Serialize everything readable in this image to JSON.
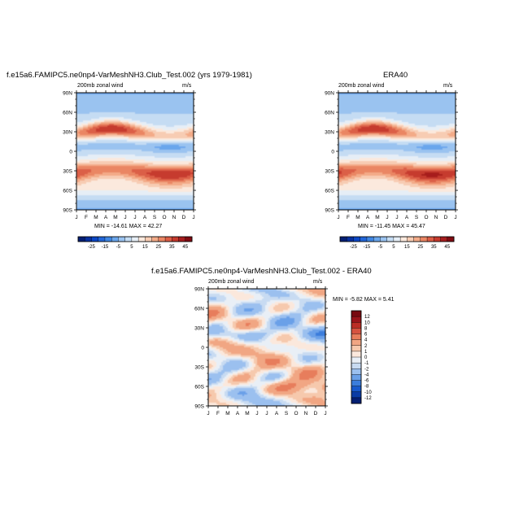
{
  "colors": {
    "full_palette": [
      "#051f73",
      "#08309e",
      "#0c47c6",
      "#2266d8",
      "#3f86e2",
      "#6aa6ec",
      "#9ac3f0",
      "#c5dcf3",
      "#e6eef6",
      "#fbe9dd",
      "#f7ccb3",
      "#f3ab88",
      "#ea8664",
      "#db5e46",
      "#c63a2d",
      "#a71d1f",
      "#800b12"
    ],
    "diff_palette": [
      "#051f73",
      "#0a3ca6",
      "#1759cc",
      "#3a7ddc",
      "#6aa0e8",
      "#9bc0ef",
      "#c8dbf2",
      "#e9eff6",
      "#fbe8dc",
      "#f6c9ad",
      "#f1a683",
      "#e77d5c",
      "#d65340",
      "#bb2d25",
      "#99141a",
      "#780a10"
    ]
  },
  "chart_data": [
    {
      "type": "heatmap",
      "title": "f.e15a6.FAMIPC5.ne0np4-VarMeshNH3.Club_Test.002 (yrs 1979-1981)",
      "subtitle_left": "200mb zonal wind",
      "subtitle_right": "m/s",
      "stats": "MIN = -14.61 MAX = 42.27",
      "x": [
        "J",
        "F",
        "M",
        "A",
        "M",
        "J",
        "J",
        "A",
        "S",
        "O",
        "N",
        "D",
        "J"
      ],
      "y": [
        "90N",
        "60N",
        "30N",
        "0",
        "30S",
        "60S",
        "90S"
      ],
      "colorbar_labels": [
        "-25",
        "-15",
        "-5",
        "5",
        "15",
        "25",
        "35",
        "45"
      ]
    },
    {
      "type": "heatmap",
      "title": "ERA40",
      "subtitle_left": "200mb zonal wind",
      "subtitle_right": "m/s",
      "stats": "MIN = -11.45 MAX = 45.47",
      "x": [
        "J",
        "F",
        "M",
        "A",
        "M",
        "J",
        "J",
        "A",
        "S",
        "O",
        "N",
        "D",
        "J"
      ],
      "y": [
        "90N",
        "60N",
        "30N",
        "0",
        "30S",
        "60S",
        "90S"
      ],
      "colorbar_labels": [
        "-25",
        "-15",
        "-5",
        "5",
        "15",
        "25",
        "35",
        "45"
      ]
    },
    {
      "type": "heatmap",
      "title": "f.e15a6.FAMIPC5.ne0np4-VarMeshNH3.Club_Test.002 - ERA40",
      "subtitle_left": "200mb zonal wind",
      "subtitle_right": "m/s",
      "stats": "MIN =  -5.82 MAX =   5.41",
      "x": [
        "J",
        "F",
        "M",
        "A",
        "M",
        "J",
        "J",
        "A",
        "S",
        "O",
        "N",
        "D",
        "J"
      ],
      "y": [
        "90N",
        "60N",
        "30N",
        "0",
        "30S",
        "60S",
        "90S"
      ],
      "colorbar_labels": [
        "12",
        "10",
        "8",
        "6",
        "4",
        "2",
        "1",
        "0",
        "-1",
        "-2",
        "-4",
        "-6",
        "-8",
        "-10",
        "-12"
      ]
    }
  ]
}
